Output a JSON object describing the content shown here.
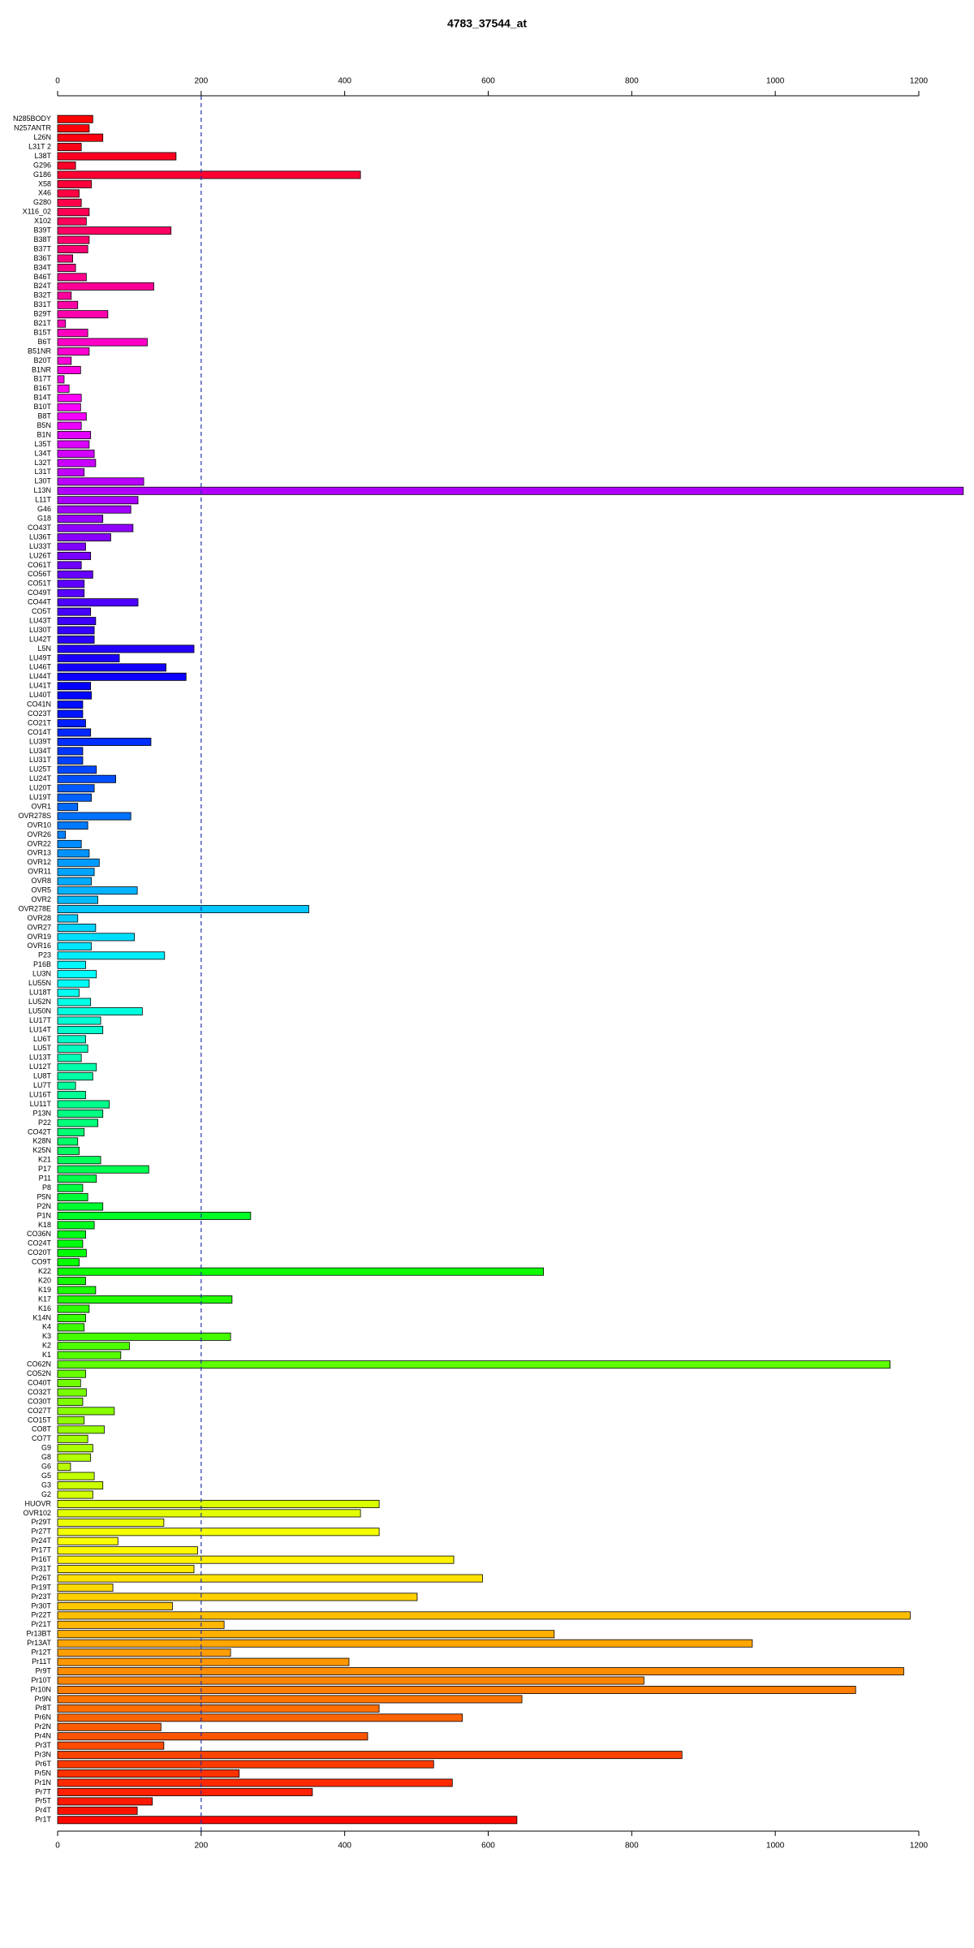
{
  "chart_data": {
    "type": "barh",
    "title": "4783_37544_at",
    "categories": [
      "N285BODY",
      "N257ANTR",
      "L26N",
      "L31T 2",
      "L38T",
      "G296",
      "G186",
      "X58",
      "X46",
      "G280",
      "X116_02",
      "X102",
      "B39T",
      "B38T",
      "B37T",
      "B36T",
      "B34T",
      "B46T",
      "B24T",
      "B32T",
      "B31T",
      "B29T",
      "B21T",
      "B15T",
      "B6T",
      "B51NR",
      "B20T",
      "B1NR",
      "B17T",
      "B16T",
      "B14T",
      "B10T",
      "B8T",
      "B5N",
      "B1N",
      "L35T",
      "L34T",
      "L32T",
      "L31T",
      "L30T",
      "L13N",
      "L11T",
      "G46",
      "G18",
      "CO43T",
      "LU36T",
      "LU33T",
      "LU26T",
      "CO61T",
      "CO56T",
      "CO51T",
      "CO49T",
      "CO44T",
      "CO5T",
      "LU43T",
      "LU30T",
      "LU42T",
      "L5N",
      "LU49T",
      "LU46T",
      "LU44T",
      "LU41T",
      "LU40T",
      "CO41N",
      "CO23T",
      "CO21T",
      "CO14T",
      "LU39T",
      "LU34T",
      "LU31T",
      "LU25T",
      "LU24T",
      "LU20T",
      "LU19T",
      "OVR1",
      "OVR278S",
      "OVR10",
      "OVR26",
      "OVR22",
      "OVR13",
      "OVR12",
      "OVR11",
      "OVR8",
      "OVR5",
      "OVR2",
      "OVR278E",
      "OVR28",
      "OVR27",
      "OVR19",
      "OVR16",
      "P23",
      "P16B",
      "LU3N",
      "LU55N",
      "LU18T",
      "LU52N",
      "LU50N",
      "LU17T",
      "LU14T",
      "LU6T",
      "LU5T",
      "LU13T",
      "LU12T",
      "LU8T",
      "LU7T",
      "LU16T",
      "LU11T",
      "P13N",
      "P22",
      "CO42T",
      "K28N",
      "K25N",
      "K21",
      "P17",
      "P11",
      "P8",
      "P5N",
      "P2N",
      "P1N",
      "K18",
      "CO36N",
      "CO24T",
      "CO20T",
      "CO9T",
      "K22",
      "K20",
      "K19",
      "K17",
      "K16",
      "K14N",
      "K4",
      "K3",
      "K2",
      "K1",
      "CO62N",
      "CO52N",
      "CO40T",
      "CO32T",
      "CO30T",
      "CO27T",
      "CO15T",
      "CO8T",
      "CO7T",
      "G9",
      "G8",
      "G6",
      "G5",
      "G3",
      "G2",
      "HUOVR",
      "OVR102",
      "Pr29T",
      "Pr27T",
      "Pr24T",
      "Pr17T",
      "Pr16T",
      "Pr31T",
      "Pr26T",
      "Pr19T",
      "Pr23T",
      "Pr30T",
      "Pr22T",
      "Pr21T",
      "Pr13BT",
      "Pr13AT",
      "Pr12T",
      "Pr11T",
      "Pr9T",
      "Pr10T",
      "Pr10N",
      "Pr9N",
      "Pr8T",
      "Pr6N",
      "Pr2N",
      "Pr4N",
      "Pr3T",
      "Pr3N",
      "Pr6T",
      "Pr5N",
      "Pr1N",
      "Pr7T",
      "Pr5T",
      "Pr4T",
      "Pr1T"
    ],
    "values": [
      49,
      44,
      63,
      33,
      165,
      25,
      422,
      47,
      30,
      33,
      44,
      40,
      158,
      44,
      42,
      21,
      25,
      40,
      134,
      19,
      28,
      70,
      11,
      42,
      125,
      44,
      19,
      32,
      9,
      16,
      33,
      32,
      40,
      33,
      46,
      44,
      51,
      53,
      37,
      120,
      1262,
      112,
      102,
      63,
      105,
      74,
      39,
      46,
      33,
      49,
      37,
      37,
      112,
      46,
      53,
      51,
      51,
      190,
      86,
      151,
      179,
      46,
      47,
      35,
      35,
      39,
      46,
      130,
      35,
      35,
      54,
      81,
      51,
      47,
      28,
      102,
      42,
      11,
      33,
      44,
      58,
      51,
      47,
      111,
      56,
      350,
      28,
      53,
      107,
      47,
      149,
      39,
      54,
      44,
      30,
      46,
      118,
      60,
      63,
      39,
      42,
      33,
      54,
      49,
      25,
      39,
      72,
      63,
      56,
      37,
      28,
      30,
      60,
      127,
      54,
      35,
      42,
      63,
      269,
      51,
      39,
      35,
      40,
      30,
      677,
      39,
      53,
      243,
      44,
      39,
      37,
      241,
      100,
      88,
      1160,
      39,
      32,
      40,
      35,
      79,
      37,
      65,
      42,
      49,
      46,
      18,
      51,
      63,
      49,
      448,
      422,
      148,
      448,
      84,
      195,
      552,
      190,
      592,
      77,
      501,
      160,
      1188,
      232,
      692,
      968,
      241,
      406,
      1179,
      817,
      1112,
      647,
      448,
      564,
      144,
      432,
      148,
      870,
      524,
      253,
      550,
      355,
      132,
      111,
      640
    ],
    "palette": "rainbow",
    "xlim": [
      0,
      1200
    ],
    "xticks": [
      0,
      200,
      400,
      600,
      800,
      1000,
      1200
    ],
    "reference_line": 200
  }
}
